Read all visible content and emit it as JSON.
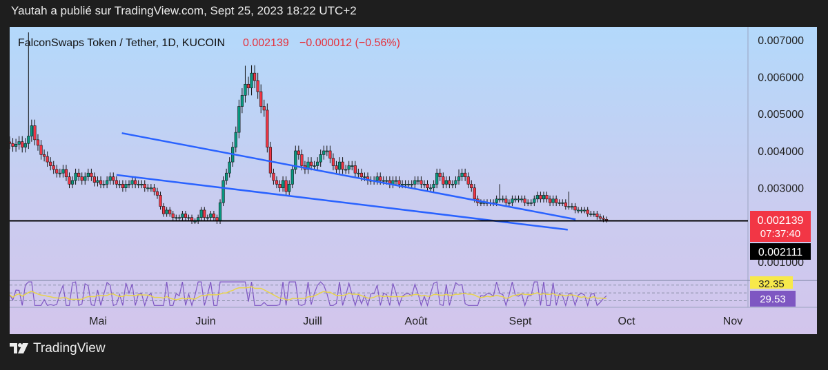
{
  "header": {
    "caption": "Yautah a publié sur TradingView.com, Sept 25, 2023 18:22 UTC+2"
  },
  "footer": {
    "brand": "TradingView"
  },
  "chart_data": {
    "type": "candlestick",
    "symbol_line": "FalconSwaps Token / Tether, 1D, KUCOIN",
    "last_price": "0.002139",
    "change": "−0.000012 (−0.56%)",
    "price_axis": {
      "ticks": [
        "0.007000",
        "0.006000",
        "0.005000",
        "0.004000",
        "0.003000",
        "0.001000"
      ],
      "tick_values": [
        0.007,
        0.006,
        0.005,
        0.004,
        0.003,
        0.001
      ],
      "ylim": [
        0.0005,
        0.00735
      ]
    },
    "price_labels": {
      "current": "0.002139",
      "countdown": "07:37:40",
      "support": "0.002111"
    },
    "support_level": 0.002111,
    "time_axis": [
      "Mai",
      "Juin",
      "Juill",
      "Août",
      "Sept",
      "Oct",
      "Nov"
    ],
    "falling_wedge": {
      "upper": [
        [
          0.152,
          0.00448
        ],
        [
          0.7665,
          0.00215
        ]
      ],
      "lower": [
        [
          0.1447,
          0.00335
        ],
        [
          0.7559,
          0.00187
        ]
      ]
    },
    "rsi": {
      "value_label": "29.53",
      "ma_label": "32.35",
      "lines": [
        "70",
        "50",
        "30"
      ]
    },
    "candles_close": [
      0.0042,
      0.00412,
      0.00418,
      0.00425,
      0.0041,
      0.0042,
      0.0044,
      0.00468,
      0.0043,
      0.00415,
      0.0039,
      0.00385,
      0.0037,
      0.0036,
      0.0035,
      0.0034,
      0.0034,
      0.0035,
      0.0033,
      0.0031,
      0.0032,
      0.0034,
      0.0033,
      0.0032,
      0.0033,
      0.0034,
      0.0033,
      0.00315,
      0.0032,
      0.0031,
      0.0031,
      0.0032,
      0.0033,
      0.0032,
      0.0031,
      0.0031,
      0.003,
      0.0031,
      0.0031,
      0.0032,
      0.0031,
      0.0031,
      0.0031,
      0.003,
      0.003,
      0.003,
      0.0029,
      0.0028,
      0.0025,
      0.0023,
      0.0024,
      0.0023,
      0.0022,
      0.0022,
      0.0022,
      0.0023,
      0.0022,
      0.0022,
      0.0021,
      0.0021,
      0.0022,
      0.0024,
      0.0022,
      0.0022,
      0.0023,
      0.0022,
      0.0021,
      0.0026,
      0.0032,
      0.0034,
      0.0037,
      0.0041,
      0.0045,
      0.0052,
      0.0055,
      0.0058,
      0.0057,
      0.0061,
      0.0059,
      0.0056,
      0.0052,
      0.0051,
      0.0041,
      0.0034,
      0.0032,
      0.0031,
      0.003,
      0.0032,
      0.0029,
      0.0031,
      0.0035,
      0.004,
      0.0039,
      0.0036,
      0.0035,
      0.0037,
      0.0036,
      0.0036,
      0.0037,
      0.0039,
      0.004,
      0.004,
      0.0038,
      0.0036,
      0.0035,
      0.0037,
      0.0035,
      0.0035,
      0.0036,
      0.0036,
      0.0034,
      0.0034,
      0.0033,
      0.0033,
      0.0032,
      0.0032,
      0.0032,
      0.0033,
      0.0032,
      0.0032,
      0.0032,
      0.0031,
      0.0032,
      0.0032,
      0.0031,
      0.0031,
      0.0031,
      0.0031,
      0.0031,
      0.0032,
      0.0032,
      0.0031,
      0.0031,
      0.003,
      0.003,
      0.0031,
      0.0034,
      0.0033,
      0.0031,
      0.0032,
      0.0031,
      0.0031,
      0.0032,
      0.0033,
      0.0034,
      0.0033,
      0.0031,
      0.003,
      0.0027,
      0.0026,
      0.0026,
      0.0026,
      0.0026,
      0.0026,
      0.0026,
      0.0027,
      0.0027,
      0.0027,
      0.0026,
      0.0026,
      0.0027,
      0.0027,
      0.0027,
      0.0027,
      0.0026,
      0.0026,
      0.0026,
      0.0027,
      0.0028,
      0.0027,
      0.0028,
      0.0027,
      0.0026,
      0.0027,
      0.0026,
      0.0026,
      0.0026,
      0.0025,
      0.0025,
      0.0025,
      0.0024,
      0.0024,
      0.0024,
      0.0024,
      0.0023,
      0.0023,
      0.0023,
      0.00222,
      0.00218,
      0.00215,
      0.002139
    ]
  }
}
